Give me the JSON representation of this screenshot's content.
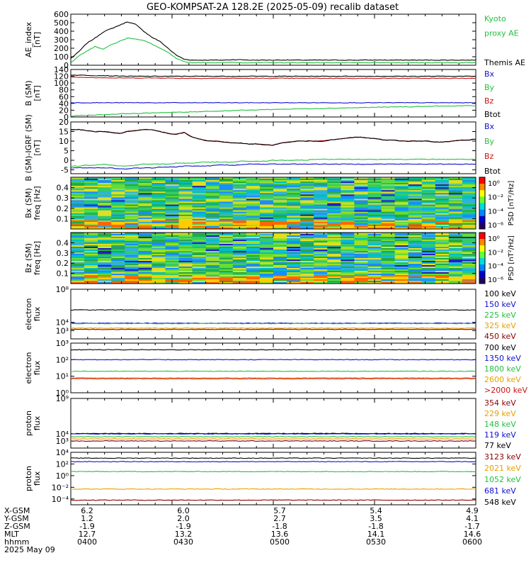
{
  "title": "GEO-KOMPSAT-2A 128.2E (2025-05-09) recalib dataset",
  "colors": {
    "black": "#000000",
    "blue": "#1010d0",
    "green": "#22c040",
    "red": "#d01010",
    "orange": "#e8a000",
    "maroon": "#8b0000",
    "navy": "#0000c8"
  },
  "panels": [
    {
      "id": "ae",
      "ylabel": [
        "AE_index",
        "[nT]"
      ],
      "scale": "linear",
      "ylim": [
        0,
        600
      ],
      "ticks": [
        "0",
        "100",
        "200",
        "300",
        "400",
        "500",
        "600"
      ],
      "legend": [
        {
          "text": "Kyoto",
          "color": "green"
        },
        {
          "text": "proxy AE",
          "color": "green"
        },
        {
          "text": "",
          "color": "black"
        },
        {
          "text": "Themis AE",
          "color": "black"
        }
      ],
      "series": [
        {
          "color": "black",
          "values": [
            80,
            160,
            260,
            320,
            390,
            430,
            470,
            510,
            480,
            400,
            330,
            280,
            200,
            120,
            70,
            60,
            60,
            60,
            60,
            60,
            65,
            65,
            60,
            60,
            60,
            60,
            62,
            60,
            60,
            60,
            60,
            60,
            60,
            60,
            60,
            60,
            60,
            60,
            62,
            60,
            60,
            60,
            60,
            60,
            60,
            60,
            60,
            60,
            60,
            60,
            60
          ]
        },
        {
          "color": "green",
          "values": [
            30,
            110,
            170,
            220,
            190,
            240,
            280,
            320,
            310,
            290,
            250,
            200,
            150,
            80,
            40,
            30,
            30,
            30,
            30,
            30,
            35,
            30,
            30,
            30,
            30,
            30,
            30,
            30,
            30,
            30,
            30,
            30,
            30,
            30,
            30,
            30,
            30,
            30,
            30,
            30,
            30,
            30,
            30,
            30,
            30,
            30,
            30,
            30,
            30,
            30,
            30
          ]
        }
      ]
    },
    {
      "id": "bsm",
      "ylabel": [
        "B (SM)",
        "[nT]"
      ],
      "scale": "linear",
      "ylim": [
        0,
        140
      ],
      "ticks": [
        "0",
        "20",
        "40",
        "60",
        "80",
        "100",
        "120",
        "140"
      ],
      "legend": [
        {
          "text": "Bx",
          "color": "blue"
        },
        {
          "text": "By",
          "color": "green"
        },
        {
          "text": "Bz",
          "color": "red"
        },
        {
          "text": "Btot",
          "color": "black"
        }
      ],
      "series": [
        {
          "color": "black",
          "values": [
            124,
            123,
            123,
            122,
            122,
            121,
            121,
            120,
            120,
            120,
            120,
            120,
            120,
            120,
            120,
            120,
            120,
            120,
            120,
            120,
            120,
            120,
            120,
            120,
            120,
            120,
            120,
            120,
            120,
            120,
            120,
            120,
            120,
            120,
            120,
            120,
            120,
            120,
            120,
            120,
            120,
            120,
            120,
            120,
            120,
            120,
            120,
            120,
            120,
            120,
            120
          ]
        },
        {
          "color": "red",
          "values": [
            118,
            117,
            117,
            116,
            116,
            115,
            115,
            115,
            115,
            115,
            115,
            115,
            115,
            114,
            114,
            114,
            114,
            114,
            114,
            114,
            114,
            114,
            114,
            114,
            114,
            114,
            114,
            114,
            114,
            114,
            114,
            114,
            114,
            114,
            114,
            114,
            114,
            114,
            114,
            114,
            114,
            114,
            114,
            114,
            114,
            114,
            114,
            114,
            114,
            114,
            114
          ]
        },
        {
          "color": "blue",
          "values": [
            42,
            42,
            42,
            42,
            42,
            42,
            42,
            42,
            42,
            42,
            42,
            42,
            42,
            42,
            42,
            42,
            42,
            42,
            42,
            42,
            42,
            42,
            42,
            42,
            42,
            42,
            42,
            42,
            42,
            42,
            42,
            42,
            42,
            42,
            42,
            42,
            42,
            42,
            42,
            42,
            42,
            42,
            42,
            42,
            42,
            42,
            42,
            42,
            42,
            42,
            42
          ]
        },
        {
          "color": "green",
          "values": [
            3,
            4,
            5,
            6,
            7,
            8,
            9,
            10,
            10,
            11,
            12,
            13,
            13,
            14,
            14,
            15,
            16,
            17,
            17,
            18,
            19,
            20,
            20,
            21,
            22,
            22,
            23,
            23,
            24,
            24,
            25,
            25,
            26,
            26,
            27,
            27,
            28,
            28,
            29,
            29,
            30,
            30,
            30,
            31,
            31,
            32,
            32,
            32,
            33,
            33,
            33
          ]
        }
      ]
    },
    {
      "id": "dbsm",
      "ylabel": [
        "B (SM)-IGRF (SM)",
        "[nT]"
      ],
      "scale": "linear",
      "ylim": [
        -7,
        20
      ],
      "ticks": [
        "-5",
        "0",
        "5",
        "10",
        "15",
        "20"
      ],
      "tickvals": [
        -5,
        0,
        5,
        10,
        15,
        20
      ],
      "legend": [
        {
          "text": "Bx",
          "color": "blue"
        },
        {
          "text": "By",
          "color": "green"
        },
        {
          "text": "Bz",
          "color": "red"
        },
        {
          "text": "Btot",
          "color": "black"
        }
      ],
      "series": [
        {
          "color": "red",
          "values": [
            16,
            16,
            15.5,
            15,
            15,
            14.5,
            14,
            15,
            15.5,
            16,
            16,
            15,
            14,
            13.5,
            14.5,
            12,
            11,
            10,
            10,
            9.5,
            9,
            9,
            8.5,
            8.5,
            8,
            8,
            9,
            9.5,
            10,
            10,
            10,
            10,
            10.5,
            11,
            11.5,
            12,
            12,
            11.5,
            11,
            10.5,
            10.5,
            10,
            10,
            10,
            10,
            9.5,
            9.5,
            10,
            10.5,
            10.5,
            11
          ]
        },
        {
          "color": "black",
          "values": [
            16,
            16,
            15.5,
            15,
            15,
            14.5,
            14,
            15,
            15.5,
            16,
            16,
            15,
            14,
            13.5,
            14.5,
            12,
            11,
            10,
            10,
            9.5,
            9,
            9,
            8.5,
            8.5,
            8,
            8,
            9,
            9.5,
            10,
            10,
            10,
            10,
            10.5,
            11,
            11.5,
            12,
            12,
            11.5,
            11,
            10.5,
            10.5,
            10,
            10,
            10,
            10,
            9.5,
            9.5,
            10,
            10.5,
            10.5,
            11
          ]
        },
        {
          "color": "green",
          "values": [
            -3,
            -3,
            -2.5,
            -2.5,
            -2,
            -2.5,
            -3,
            -3,
            -2.5,
            -2,
            -2,
            -2,
            -2,
            -1.5,
            -1.5,
            -1.5,
            -1,
            -1,
            -1,
            -1,
            -1,
            -0.5,
            -0.5,
            -0.5,
            -0.5,
            0,
            0,
            0,
            0,
            0,
            0.5,
            0.5,
            0.5,
            0.5,
            0.5,
            0.5,
            0.5,
            0.5,
            0.5,
            0.5,
            0.5,
            0.5,
            0.5,
            0.5,
            0.5,
            0.5,
            0.5,
            0.5,
            0.5,
            0.5,
            0.5
          ]
        },
        {
          "color": "blue",
          "values": [
            -4,
            -4,
            -4,
            -4,
            -4,
            -4,
            -4.5,
            -4.5,
            -4,
            -4,
            -4,
            -3.5,
            -3.5,
            -3.5,
            -3,
            -3,
            -3,
            -3,
            -2.5,
            -2.5,
            -2.5,
            -2.5,
            -2,
            -2,
            -2,
            -2,
            -2,
            -2,
            -2,
            -2,
            -2,
            -2,
            -2,
            -2,
            -2,
            -2,
            -2,
            -2,
            -2,
            -2,
            -2,
            -2,
            -2,
            -2,
            -2,
            -2,
            -2,
            -2,
            -2,
            -2,
            -2
          ]
        }
      ]
    },
    {
      "id": "bxspec",
      "ylabel": [
        "Bx (SM)",
        "freq [Hz]"
      ],
      "scale": "spectrogram",
      "ylim": [
        0,
        0.5
      ],
      "ticks": [
        "0.1",
        "0.2",
        "0.3",
        "0.4"
      ],
      "tickvals": [
        0.1,
        0.2,
        0.3,
        0.4
      ],
      "colorbar": {
        "label": "PSD [nT²/Hz]",
        "ticks": [
          "10⁰",
          "10⁻²",
          "10⁻⁴",
          "10⁻⁶"
        ]
      }
    },
    {
      "id": "bzspec",
      "ylabel": [
        "Bz (SM)",
        "freq [Hz]"
      ],
      "scale": "spectrogram",
      "ylim": [
        0,
        0.5
      ],
      "ticks": [
        "0.1",
        "0.2",
        "0.3",
        "0.4"
      ],
      "tickvals": [
        0.1,
        0.2,
        0.3,
        0.4
      ],
      "colorbar": {
        "label": "PSD [nT²/Hz]",
        "ticks": [
          "10⁰",
          "10⁻²",
          "10⁻⁴",
          "10⁻⁶"
        ]
      }
    },
    {
      "id": "elec1",
      "ylabel": [
        "electron",
        "flux"
      ],
      "scale": "log",
      "ylim": [
        2,
        8
      ],
      "ticks": [
        "10³",
        "10⁴",
        "10⁸"
      ],
      "tickvals": [
        3,
        4,
        8
      ],
      "legend": [
        {
          "text": "100 keV",
          "color": "black"
        },
        {
          "text": "150 keV",
          "color": "blue"
        },
        {
          "text": "225 keV",
          "color": "green"
        },
        {
          "text": "325 keV",
          "color": "orange"
        },
        {
          "text": "450 keV",
          "color": "maroon"
        }
      ],
      "series": [
        {
          "color": "black",
          "level": 5.5
        },
        {
          "color": "blue",
          "level": 3.9
        },
        {
          "color": "green",
          "level": 3.85
        },
        {
          "color": "orange",
          "level": 3.3
        },
        {
          "color": "maroon",
          "level": 3.15
        }
      ]
    },
    {
      "id": "elec2",
      "ylabel": [
        "electron",
        "flux"
      ],
      "scale": "log",
      "ylim": [
        0,
        3
      ],
      "ticks": [
        "10⁰",
        "10¹",
        "10²",
        "10³"
      ],
      "tickvals": [
        0,
        1,
        2,
        3
      ],
      "legend": [
        {
          "text": "700 keV",
          "color": "black"
        },
        {
          "text": "1350 keV",
          "color": "blue"
        },
        {
          "text": "1800 keV",
          "color": "green"
        },
        {
          "text": "2600 keV",
          "color": "orange"
        },
        {
          "text": ">2000 keV",
          "color": "red"
        }
      ],
      "series": [
        {
          "color": "black",
          "level": 2.6
        },
        {
          "color": "blue",
          "level": 2.0
        },
        {
          "color": "green",
          "level": 1.3
        },
        {
          "color": "orange",
          "level": 0.9
        },
        {
          "color": "red",
          "level": 0.85
        }
      ]
    },
    {
      "id": "prot1",
      "ylabel": [
        "proton",
        "flux"
      ],
      "scale": "log",
      "ylim": [
        2,
        9
      ],
      "ticks": [
        "10³",
        "10⁴",
        "10⁹"
      ],
      "tickvals": [
        3,
        4,
        9
      ],
      "legend": [
        {
          "text": "354 keV",
          "color": "maroon"
        },
        {
          "text": "229 keV",
          "color": "orange"
        },
        {
          "text": "148 keV",
          "color": "green"
        },
        {
          "text": "119 keV",
          "color": "blue"
        },
        {
          "text": "77 keV",
          "color": "black"
        }
      ],
      "series": [
        {
          "color": "black",
          "level": 4.05
        },
        {
          "color": "blue",
          "level": 4.0
        },
        {
          "color": "green",
          "level": 3.6
        },
        {
          "color": "orange",
          "level": 3.3
        },
        {
          "color": "maroon",
          "level": 3.0
        }
      ]
    },
    {
      "id": "prot2",
      "ylabel": [
        "proton",
        "flux"
      ],
      "scale": "log",
      "ylim": [
        -5,
        4
      ],
      "ticks": [
        "10⁻⁴",
        "10⁻²",
        "10⁰",
        "10²",
        "10⁴"
      ],
      "tickvals": [
        -4,
        -2,
        0,
        2,
        4
      ],
      "legend": [
        {
          "text": "3123 keV",
          "color": "maroon"
        },
        {
          "text": "2021 keV",
          "color": "orange"
        },
        {
          "text": "1052 keV",
          "color": "green"
        },
        {
          "text": "681 keV",
          "color": "blue"
        },
        {
          "text": "548 keV",
          "color": "black"
        }
      ],
      "series": [
        {
          "color": "black",
          "level": 3.0
        },
        {
          "color": "blue",
          "level": 2.4
        },
        {
          "color": "green",
          "level": 0.7
        },
        {
          "color": "orange",
          "level": -2.3
        },
        {
          "color": "maroon",
          "level": -4.2
        }
      ]
    }
  ],
  "xaxis": {
    "row_labels": [
      "X-GSM",
      "Y-GSM",
      "Z-GSM",
      "MLT",
      "hhmm",
      "2025 May 09"
    ],
    "columns": [
      [
        "6.2",
        "1.2",
        "-1.9",
        "12.7",
        "0400"
      ],
      [
        "6.0",
        "2.0",
        "-1.9",
        "13.2",
        "0430"
      ],
      [
        "5.7",
        "2.7",
        "-1.8",
        "13.6",
        "0500"
      ],
      [
        "5.4",
        "3.5",
        "-1.8",
        "14.1",
        "0530"
      ],
      [
        "4.9",
        "4.1",
        "-1.7",
        "14.6",
        "0600"
      ]
    ]
  }
}
